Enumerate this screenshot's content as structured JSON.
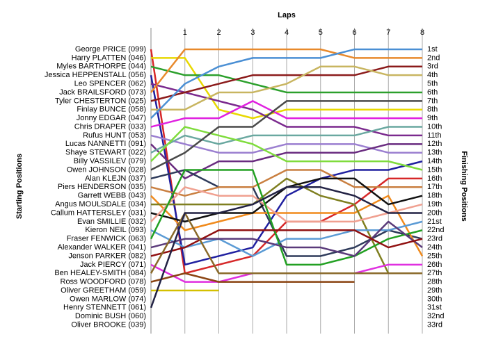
{
  "chart_data": {
    "type": "line",
    "xlabel": "Laps",
    "ylabel": "Starting Positions",
    "y2label": "Finishing Positions",
    "x": [
      0,
      1,
      2,
      3,
      4,
      5,
      6,
      7,
      8
    ],
    "xlim": [
      0,
      8
    ],
    "xticks": [
      1,
      2,
      3,
      4,
      5,
      6,
      7,
      8
    ],
    "ylim": [
      34,
      -1.5
    ],
    "y2lim": [
      34,
      -1.5
    ],
    "grid": true,
    "y2ticks": [
      {
        "value": 1,
        "label": "1st"
      },
      {
        "value": 2,
        "label": "2nd"
      },
      {
        "value": 3,
        "label": "3rd"
      },
      {
        "value": 4,
        "label": "4th"
      },
      {
        "value": 5,
        "label": "5th"
      },
      {
        "value": 6,
        "label": "6th"
      },
      {
        "value": 7,
        "label": "7th"
      },
      {
        "value": 8,
        "label": "8th"
      },
      {
        "value": 9,
        "label": "9th"
      },
      {
        "value": 10,
        "label": "10th"
      },
      {
        "value": 11,
        "label": "11th"
      },
      {
        "value": 12,
        "label": "12th"
      },
      {
        "value": 13,
        "label": "13th"
      },
      {
        "value": 14,
        "label": "14th"
      },
      {
        "value": 15,
        "label": "15th"
      },
      {
        "value": 16,
        "label": "16th"
      },
      {
        "value": 17,
        "label": "17th"
      },
      {
        "value": 18,
        "label": "18th"
      },
      {
        "value": 19,
        "label": "19th"
      },
      {
        "value": 20,
        "label": "20th"
      },
      {
        "value": 21,
        "label": "21st"
      },
      {
        "value": 22,
        "label": "22nd"
      },
      {
        "value": 23,
        "label": "23rd"
      },
      {
        "value": 24,
        "label": "24th"
      },
      {
        "value": 25,
        "label": "25th"
      },
      {
        "value": 26,
        "label": "26th"
      },
      {
        "value": 27,
        "label": "27th"
      },
      {
        "value": 28,
        "label": "28th"
      },
      {
        "value": 29,
        "label": "29th"
      },
      {
        "value": 30,
        "label": "30th"
      },
      {
        "value": 31,
        "label": "31st"
      },
      {
        "value": 32,
        "label": "32nd"
      },
      {
        "value": 33,
        "label": "33rd"
      }
    ],
    "series": [
      {
        "name": "George PRICE (099)",
        "color": "#d62728",
        "values": [
          1,
          27,
          26,
          25,
          21,
          21,
          19,
          16,
          16
        ]
      },
      {
        "name": "Harry PLATTEN (046)",
        "color": "#e8d800",
        "values": [
          2,
          2,
          8,
          9,
          8,
          8,
          8,
          8,
          8
        ]
      },
      {
        "name": "Myles BARTHORPE (044)",
        "color": "#2ca02c",
        "values": [
          3,
          4,
          4,
          5,
          6,
          6,
          6,
          6,
          6
        ]
      },
      {
        "name": "Jessica HEPPENSTALL (056)",
        "color": "#1f1f9f",
        "values": [
          4,
          26,
          25,
          24,
          18,
          16,
          15,
          15,
          14
        ]
      },
      {
        "name": "Leo SPENCER (062)",
        "color": "#7b2a8e",
        "values": [
          5,
          6,
          7,
          8,
          10,
          10,
          10,
          11,
          11
        ]
      },
      {
        "name": "Jack BRAILSFORD (073)",
        "color": "#e8892b",
        "values": [
          6,
          1,
          1,
          1,
          1,
          1,
          2,
          2,
          2
        ]
      },
      {
        "name": "Tyler CHESTERTON (025)",
        "color": "#8b1a1a",
        "values": [
          7,
          6,
          5,
          4,
          4,
          4,
          4,
          3,
          3
        ]
      },
      {
        "name": "Finlay BUNCE (058)",
        "color": "#c8b560",
        "values": [
          8,
          8,
          6,
          6,
          5,
          3,
          3,
          4,
          4
        ]
      },
      {
        "name": "Jonny EDGAR (047)",
        "color": "#4a8fd4",
        "values": [
          9,
          5,
          3,
          2,
          2,
          2,
          1,
          1,
          1
        ]
      },
      {
        "name": "Chris DRAPER (033)",
        "color": "#e020e0",
        "values": [
          10,
          9,
          9,
          7,
          9,
          9,
          9,
          9,
          9
        ]
      },
      {
        "name": "Rufus HUNT (053)",
        "color": "#9b7fd0",
        "values": [
          11,
          12,
          13,
          13,
          12,
          12,
          12,
          13,
          13
        ]
      },
      {
        "name": "Lucas NANNETTI (091)",
        "color": "#6a2c80",
        "values": [
          12,
          16,
          14,
          14,
          13,
          13,
          13,
          12,
          12
        ]
      },
      {
        "name": "Shaye STEWART (022)",
        "color": "#6aa8a0",
        "values": [
          13,
          11,
          12,
          11,
          11,
          11,
          11,
          10,
          10
        ]
      },
      {
        "name": "Billy VASSILEV (079)",
        "color": "#7fdc3c",
        "values": [
          14,
          10,
          11,
          12,
          14,
          14,
          14,
          14,
          15
        ]
      },
      {
        "name": "Owen JOHNSON (028)",
        "color": "#4a4a4a",
        "values": [
          15,
          13,
          10,
          10,
          7,
          7,
          7,
          7,
          7
        ]
      },
      {
        "name": "Alan KLEJN (037)",
        "color": "#2e3a5a",
        "values": [
          16,
          15,
          17,
          17,
          25,
          25,
          24,
          22,
          23
        ]
      },
      {
        "name": "Piers HENDERSON (035)",
        "color": "#c97f40",
        "values": [
          17,
          18,
          17,
          17,
          15,
          15,
          17,
          17,
          17
        ]
      },
      {
        "name": "Garrett WEBB (043)",
        "color": "#f08a1c",
        "values": [
          18,
          22,
          21,
          20,
          20,
          20,
          20,
          18,
          25
        ]
      },
      {
        "name": "Angus MOULSDALE (034)",
        "color": "#7f7f20",
        "values": [
          19,
          19,
          19,
          19,
          16,
          18,
          19,
          27,
          27
        ]
      },
      {
        "name": "Callum HATTERSLEY (031)",
        "color": "#111111",
        "values": [
          20,
          21,
          20,
          20,
          17,
          16,
          16,
          19,
          18
        ]
      },
      {
        "name": "Evan SMILLIE (032)",
        "color": "#f0a090",
        "values": [
          21,
          17,
          18,
          18,
          21,
          21,
          21,
          20,
          19
        ]
      },
      {
        "name": "Kieron NEIL (093)",
        "color": "#5b9bd5",
        "values": [
          22,
          24,
          23,
          25,
          23,
          23,
          22,
          22,
          21
        ]
      },
      {
        "name": "Fraser FENWICK (063)",
        "color": "#22a022",
        "values": [
          23,
          15,
          15,
          15,
          26,
          26,
          25,
          23,
          22
        ]
      },
      {
        "name": "Alexander WALKER (041)",
        "color": "#5a3a7a",
        "values": [
          24,
          23,
          23,
          23,
          24,
          24,
          25,
          21,
          24
        ]
      },
      {
        "name": "Jenson PARKER (082)",
        "color": "#901010",
        "values": [
          25,
          24,
          22,
          22,
          22,
          22,
          22,
          24,
          23
        ]
      },
      {
        "name": "Jack PIERCY (071)",
        "color": "#e030e0",
        "values": [
          26,
          28,
          28,
          27,
          27,
          27,
          27,
          26,
          26
        ]
      },
      {
        "name": "Ben HEALEY-SMITH (084)",
        "color": "#8a6a2a",
        "values": [
          27,
          20,
          27,
          27,
          27,
          27,
          27,
          27,
          27
        ]
      },
      {
        "name": "Ross WOODFORD (078)",
        "color": "#8b4513",
        "values": [
          28,
          27,
          28,
          28,
          28,
          28,
          28,
          null,
          null
        ]
      },
      {
        "name": "Oliver GREETHAM (059)",
        "color": "#d4c000",
        "values": [
          29,
          29,
          29,
          null,
          null,
          null,
          null,
          null,
          null
        ]
      },
      {
        "name": "Owen MARLOW (074)",
        "color": "#888888",
        "values": [
          30,
          null,
          null,
          null,
          null,
          null,
          null,
          null,
          null
        ]
      },
      {
        "name": "Henry STENNETT (061)",
        "color": "#222244",
        "values": [
          31,
          20,
          20,
          19,
          17,
          17,
          18,
          20,
          20
        ]
      },
      {
        "name": "Dominic BUSH (060)",
        "color": "#888888",
        "values": [
          32,
          null,
          null,
          null,
          null,
          null,
          null,
          null,
          null
        ]
      },
      {
        "name": "Oliver BROOKE (039)",
        "color": "#888888",
        "values": [
          33,
          null,
          null,
          null,
          null,
          null,
          null,
          null,
          null
        ]
      }
    ]
  }
}
